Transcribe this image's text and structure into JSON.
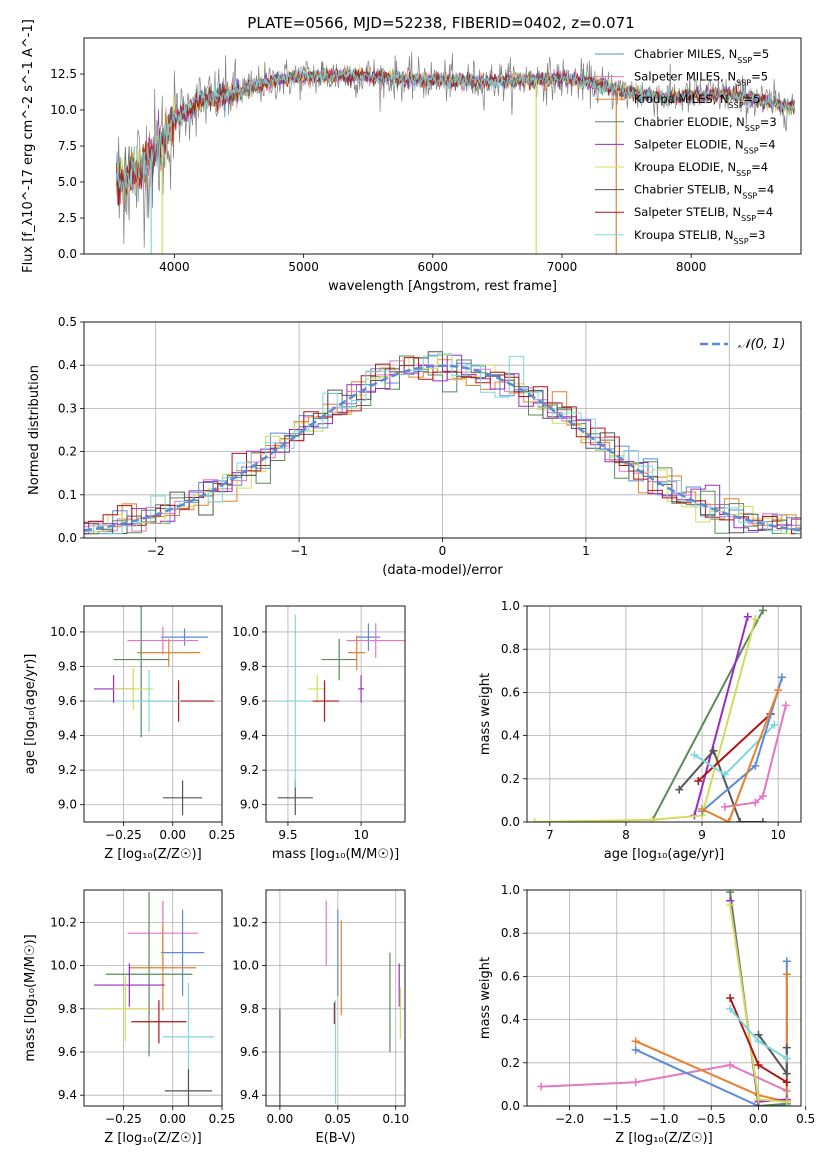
{
  "title": "PLATE=0566, MJD=52238, FIBERID=0402, z=0.071",
  "colors": {
    "chabrier_miles": "#5b8bd9",
    "salpeter_miles": "#e377c2",
    "kroupa_miles": "#e8812c",
    "chabrier_elodie": "#5a8a5a",
    "salpeter_elodie": "#9a2bc6",
    "kroupa_elodie": "#d2dc5a",
    "chabrier_stelib": "#555555",
    "salpeter_stelib": "#b01515",
    "kroupa_stelib": "#7fd6de",
    "data": "#808080",
    "gauss": "#5b8bd9"
  },
  "chart_data": [
    {
      "type": "line",
      "xlabel": "wavelength [Angstrom, rest frame]",
      "ylabel": "Flux [f_λ10^-17 erg cm^-2 s^-1 A^-1]",
      "xlim": [
        3300,
        8850
      ],
      "ylim": [
        0,
        15
      ],
      "xticks": [
        4000,
        5000,
        6000,
        7000,
        8000
      ],
      "yticks": [
        0.0,
        2.5,
        5.0,
        7.5,
        10.0,
        12.5
      ],
      "legend": [
        {
          "key": "chabrier_miles",
          "label": "Chabrier MILES, N",
          "sub": "SSP",
          "suffix": "=5"
        },
        {
          "key": "salpeter_miles",
          "label": "Salpeter MILES, N",
          "sub": "SSP",
          "suffix": "=5"
        },
        {
          "key": "kroupa_miles",
          "label": "Kroupa MILES, N",
          "sub": "SSP",
          "suffix": "=5"
        },
        {
          "key": "chabrier_elodie",
          "label": "Chabrier ELODIE, N",
          "sub": "SSP",
          "suffix": "=3"
        },
        {
          "key": "salpeter_elodie",
          "label": "Salpeter ELODIE, N",
          "sub": "SSP",
          "suffix": "=4"
        },
        {
          "key": "kroupa_elodie",
          "label": "Kroupa ELODIE, N",
          "sub": "SSP",
          "suffix": "=4"
        },
        {
          "key": "chabrier_stelib",
          "label": "Chabrier STELIB, N",
          "sub": "SSP",
          "suffix": "=4"
        },
        {
          "key": "salpeter_stelib",
          "label": "Salpeter STELIB, N",
          "sub": "SSP",
          "suffix": "=4"
        },
        {
          "key": "kroupa_stelib",
          "label": "Kroupa STELIB, N",
          "sub": "SSP",
          "suffix": "=3"
        }
      ],
      "continuum": [
        [
          3550,
          5.0
        ],
        [
          3700,
          5.6
        ],
        [
          3900,
          7.5
        ],
        [
          4000,
          9.4
        ],
        [
          4200,
          10.6
        ],
        [
          4500,
          11.3
        ],
        [
          4800,
          12.1
        ],
        [
          5000,
          12.3
        ],
        [
          5300,
          12.4
        ],
        [
          5600,
          12.3
        ],
        [
          5900,
          12.1
        ],
        [
          6200,
          12.0
        ],
        [
          6500,
          12.0
        ],
        [
          6800,
          12.1
        ],
        [
          7000,
          12.2
        ],
        [
          7200,
          11.9
        ],
        [
          7500,
          11.2
        ],
        [
          7800,
          10.9
        ],
        [
          8000,
          11.0
        ],
        [
          8300,
          11.1
        ],
        [
          8600,
          10.5
        ],
        [
          8800,
          10.2
        ]
      ]
    },
    {
      "type": "line",
      "xlabel": "(data-model)/error",
      "ylabel": "Normed distribution",
      "xlim": [
        -2.5,
        2.5
      ],
      "ylim": [
        0,
        0.5
      ],
      "xticks": [
        -2,
        -1,
        0,
        1,
        2
      ],
      "xticklabels": [
        "−2",
        "−1",
        "0",
        "1",
        "2"
      ],
      "yticks": [
        0.0,
        0.1,
        0.2,
        0.3,
        0.4,
        0.5
      ],
      "legend": "𝒩(0, 1)",
      "gauss": {
        "mean": 0,
        "sigma": 1
      }
    },
    {
      "type": "scatter",
      "xlabel": "Z [log₁₀(Z/Z☉)]",
      "ylabel": "age  [log₁₀(age/yr)]",
      "xlim": [
        -0.45,
        0.25
      ],
      "ylim": [
        8.9,
        10.15
      ],
      "xticks": [
        -0.25,
        0.0,
        0.25
      ],
      "xticklabels": [
        "−0.25",
        "0.00",
        "0.25"
      ],
      "yticks": [
        9.0,
        9.2,
        9.4,
        9.6,
        9.8,
        10.0
      ],
      "points": [
        {
          "key": "chabrier_miles",
          "x": 0.06,
          "y": 9.97,
          "xe": 0.12,
          "ye": 0.05
        },
        {
          "key": "salpeter_miles",
          "x": -0.05,
          "y": 9.95,
          "xe": 0.18,
          "ye": 0.08
        },
        {
          "key": "kroupa_miles",
          "x": -0.02,
          "y": 9.88,
          "xe": 0.16,
          "ye": 0.08
        },
        {
          "key": "chabrier_elodie",
          "x": -0.16,
          "y": 9.84,
          "xe": 0.14,
          "ye": 0.45
        },
        {
          "key": "salpeter_elodie",
          "x": -0.3,
          "y": 9.67,
          "xe": 0.1,
          "ye": 0.08
        },
        {
          "key": "kroupa_elodie",
          "x": -0.2,
          "y": 9.67,
          "xe": 0.1,
          "ye": 0.12
        },
        {
          "key": "chabrier_stelib",
          "x": 0.05,
          "y": 9.04,
          "xe": 0.1,
          "ye": 0.1
        },
        {
          "key": "salpeter_stelib",
          "x": 0.03,
          "y": 9.6,
          "xe": 0.18,
          "ye": 0.12
        },
        {
          "key": "kroupa_stelib",
          "x": -0.12,
          "y": 9.6,
          "xe": 0.16,
          "ye": 0.18
        }
      ]
    },
    {
      "type": "scatter",
      "xlabel": "mass [log₁₀(M/M☉)]",
      "ylabel": "",
      "xlim": [
        9.35,
        10.3
      ],
      "ylim": [
        8.9,
        10.15
      ],
      "xticks": [
        9.5,
        10.0
      ],
      "yticks": [
        9.0,
        9.2,
        9.4,
        9.6,
        9.8,
        10.0
      ],
      "points": [
        {
          "key": "chabrier_miles",
          "x": 10.05,
          "y": 9.97,
          "xe": 0.08,
          "ye": 0.08
        },
        {
          "key": "salpeter_miles",
          "x": 10.1,
          "y": 9.95,
          "xe": 0.2,
          "ye": 0.1
        },
        {
          "key": "kroupa_miles",
          "x": 9.97,
          "y": 9.88,
          "xe": 0.06,
          "ye": 0.1
        },
        {
          "key": "chabrier_elodie",
          "x": 9.85,
          "y": 9.84,
          "xe": 0.12,
          "ye": 0.12
        },
        {
          "key": "salpeter_elodie",
          "x": 10.0,
          "y": 9.67,
          "xe": 0.02,
          "ye": 0.08
        },
        {
          "key": "kroupa_elodie",
          "x": 9.7,
          "y": 9.67,
          "xe": 0.06,
          "ye": 0.08
        },
        {
          "key": "chabrier_stelib",
          "x": 9.55,
          "y": 9.04,
          "xe": 0.12,
          "ye": 0.1
        },
        {
          "key": "salpeter_stelib",
          "x": 9.75,
          "y": 9.6,
          "xe": 0.1,
          "ye": 0.12
        },
        {
          "key": "kroupa_stelib",
          "x": 9.55,
          "y": 9.6,
          "xe": 0.12,
          "ye": 0.5
        }
      ]
    },
    {
      "type": "line",
      "xlabel": "age  [log₁₀(age/yr)]",
      "ylabel": "mass weight",
      "xlim": [
        6.7,
        10.3
      ],
      "ylim": [
        0,
        1.0
      ],
      "xticks": [
        7,
        8,
        9,
        10
      ],
      "yticks": [
        0.0,
        0.2,
        0.4,
        0.6,
        0.8,
        1.0
      ],
      "series": [
        {
          "key": "chabrier_elodie",
          "x": [
            8.35,
            9.8
          ],
          "y": [
            0.01,
            0.98
          ]
        },
        {
          "key": "salpeter_elodie",
          "x": [
            8.9,
            9.6
          ],
          "y": [
            0.03,
            0.95
          ]
        },
        {
          "key": "kroupa_elodie",
          "x": [
            6.8,
            8.35,
            9.0,
            9.7
          ],
          "y": [
            0.0,
            0.01,
            0.03,
            0.94
          ]
        },
        {
          "key": "chabrier_stelib",
          "x": [
            8.7,
            9.15,
            9.5,
            9.8
          ],
          "y": [
            0.15,
            0.33,
            0.0,
            0.0
          ]
        },
        {
          "key": "salpeter_stelib",
          "x": [
            8.95,
            9.9
          ],
          "y": [
            0.19,
            0.5
          ]
        },
        {
          "key": "kroupa_stelib",
          "x": [
            8.9,
            9.3,
            9.95
          ],
          "y": [
            0.31,
            0.22,
            0.45
          ]
        },
        {
          "key": "salpeter_miles",
          "x": [
            9.3,
            9.7,
            9.8,
            10.1
          ],
          "y": [
            0.07,
            0.09,
            0.12,
            0.54
          ]
        },
        {
          "key": "chabrier_miles",
          "x": [
            9.0,
            9.7,
            10.05
          ],
          "y": [
            0.05,
            0.26,
            0.67
          ]
        },
        {
          "key": "kroupa_miles",
          "x": [
            9.0,
            9.35,
            10.0
          ],
          "y": [
            0.06,
            0.0,
            0.61
          ]
        }
      ]
    },
    {
      "type": "scatter",
      "xlabel": "Z [log₁₀(Z/Z☉)]",
      "ylabel": "mass [log₁₀(M/M☉)]",
      "xlim": [
        -0.45,
        0.25
      ],
      "ylim": [
        9.35,
        10.35
      ],
      "xticks": [
        -0.25,
        0.0,
        0.25
      ],
      "xticklabels": [
        "−0.25",
        "0.00",
        "0.25"
      ],
      "yticks": [
        9.4,
        9.6,
        9.8,
        10.0,
        10.2
      ],
      "points": [
        {
          "key": "salpeter_miles",
          "x": -0.05,
          "y": 10.15,
          "xe": 0.18,
          "ye": 0.15
        },
        {
          "key": "chabrier_miles",
          "x": 0.05,
          "y": 10.06,
          "xe": 0.11,
          "ye": 0.2
        },
        {
          "key": "kroupa_miles",
          "x": -0.05,
          "y": 9.99,
          "xe": 0.17,
          "ye": 0.2
        },
        {
          "key": "chabrier_elodie",
          "x": -0.12,
          "y": 9.96,
          "xe": 0.22,
          "ye": 0.38
        },
        {
          "key": "salpeter_elodie",
          "x": -0.22,
          "y": 9.91,
          "xe": 0.18,
          "ye": 0.1
        },
        {
          "key": "kroupa_elodie",
          "x": -0.24,
          "y": 9.8,
          "xe": 0.12,
          "ye": 0.15
        },
        {
          "key": "salpeter_stelib",
          "x": -0.07,
          "y": 9.74,
          "xe": 0.14,
          "ye": 0.1
        },
        {
          "key": "kroupa_stelib",
          "x": 0.08,
          "y": 9.67,
          "xe": 0.13,
          "ye": 0.25
        },
        {
          "key": "chabrier_stelib",
          "x": 0.08,
          "y": 9.42,
          "xe": 0.12,
          "ye": 0.1
        }
      ]
    },
    {
      "type": "scatter",
      "xlabel": "E(B-V)",
      "ylabel": "",
      "xlim": [
        -0.012,
        0.108
      ],
      "ylim": [
        9.35,
        10.35
      ],
      "xticks": [
        0.0,
        0.05,
        0.1
      ],
      "xticklabels": [
        "0.00",
        "0.05",
        "0.10"
      ],
      "yticks": [
        9.4,
        9.6,
        9.8,
        10.0,
        10.2
      ],
      "points": [
        {
          "key": "salpeter_miles",
          "x": 0.04,
          "y": 10.15,
          "xe": 0.0,
          "ye": 0.15
        },
        {
          "key": "chabrier_miles",
          "x": 0.05,
          "y": 10.06,
          "xe": 0.0,
          "ye": 0.2
        },
        {
          "key": "kroupa_miles",
          "x": 0.053,
          "y": 9.99,
          "xe": 0.0,
          "ye": 0.22
        },
        {
          "key": "chabrier_elodie",
          "x": 0.095,
          "y": 9.83,
          "xe": 0.0,
          "ye": 0.23
        },
        {
          "key": "salpeter_elodie",
          "x": 0.103,
          "y": 9.91,
          "xe": 0.0,
          "ye": 0.1
        },
        {
          "key": "kroupa_elodie",
          "x": 0.104,
          "y": 9.78,
          "xe": 0.0,
          "ye": 0.12
        },
        {
          "key": "salpeter_stelib",
          "x": 0.047,
          "y": 9.78,
          "xe": 0.0,
          "ye": 0.05
        },
        {
          "key": "kroupa_stelib",
          "x": 0.048,
          "y": 9.6,
          "xe": 0.0,
          "ye": 0.24
        },
        {
          "key": "chabrier_stelib",
          "x": 0.0,
          "y": 9.55,
          "xe": 0.0,
          "ye": 0.25
        }
      ]
    },
    {
      "type": "line",
      "xlabel": "Z [log₁₀(Z/Z☉)]",
      "ylabel": "mass weight",
      "xlim": [
        -2.45,
        0.45
      ],
      "ylim": [
        0,
        1.0
      ],
      "xticks": [
        -2.0,
        -1.5,
        -1.0,
        -0.5,
        0.0,
        0.5
      ],
      "xticklabels": [
        "−2.0",
        "−1.5",
        "−1.0",
        "−0.5",
        "0.0",
        "0.5"
      ],
      "yticks": [
        0.0,
        0.2,
        0.4,
        0.6,
        0.8,
        1.0
      ],
      "series": [
        {
          "key": "salpeter_miles",
          "x": [
            -2.3,
            -1.3,
            -0.3,
            0.3
          ],
          "y": [
            0.09,
            0.11,
            0.19,
            0.07
          ]
        },
        {
          "key": "chabrier_miles",
          "x": [
            -1.3,
            0.0,
            0.3,
            0.3
          ],
          "y": [
            0.26,
            0.0,
            0.0,
            0.67
          ]
        },
        {
          "key": "kroupa_miles",
          "x": [
            -1.3,
            0.0,
            0.3,
            0.3
          ],
          "y": [
            0.3,
            0.05,
            0.02,
            0.61
          ]
        },
        {
          "key": "chabrier_elodie",
          "x": [
            -0.3,
            0.0,
            0.3
          ],
          "y": [
            0.99,
            0.0,
            0.01
          ]
        },
        {
          "key": "salpeter_elodie",
          "x": [
            -0.3,
            0.0,
            0.3
          ],
          "y": [
            0.95,
            0.02,
            0.03
          ]
        },
        {
          "key": "kroupa_elodie",
          "x": [
            -0.3,
            0.0,
            0.3
          ],
          "y": [
            0.93,
            0.03,
            0.02
          ]
        },
        {
          "key": "chabrier_stelib",
          "x": [
            0.0,
            0.3,
            0.3
          ],
          "y": [
            0.33,
            0.15,
            0.27
          ]
        },
        {
          "key": "salpeter_stelib",
          "x": [
            -0.3,
            0.0,
            0.3
          ],
          "y": [
            0.5,
            0.19,
            0.11
          ]
        },
        {
          "key": "kroupa_stelib",
          "x": [
            -0.3,
            0.0,
            0.3
          ],
          "y": [
            0.45,
            0.3,
            0.22
          ]
        }
      ]
    }
  ]
}
